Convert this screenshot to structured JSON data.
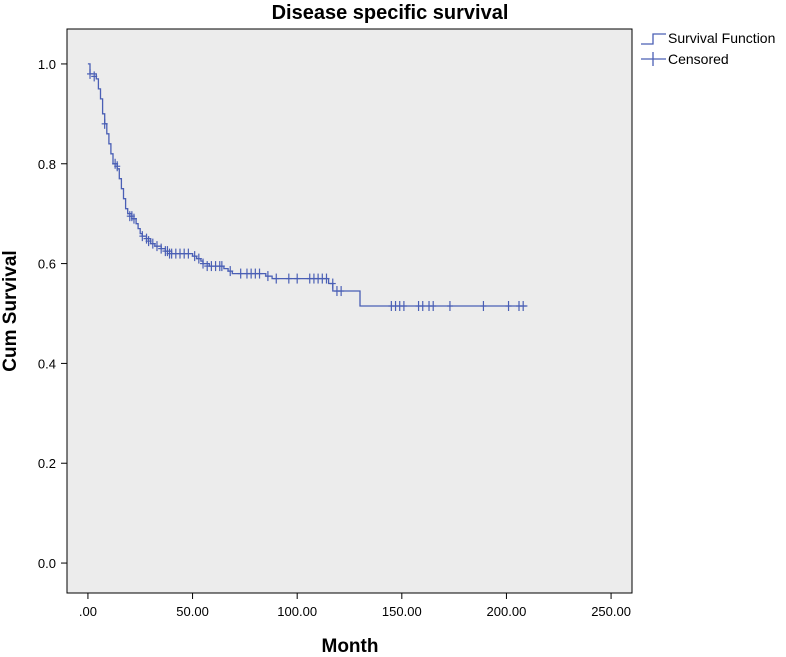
{
  "chart_data": {
    "type": "line",
    "title": "Disease specific survival",
    "xlabel": "Month",
    "ylabel": "Cum Survival",
    "xlim": [
      -10,
      260
    ],
    "ylim": [
      -0.06,
      1.07
    ],
    "x_ticks": [
      0,
      50,
      100,
      150,
      200,
      250
    ],
    "x_tick_labels": [
      ".00",
      "50.00",
      "100.00",
      "150.00",
      "200.00",
      "250.00"
    ],
    "y_ticks": [
      0.0,
      0.2,
      0.4,
      0.6,
      0.8,
      1.0
    ],
    "y_tick_labels": [
      "0.0",
      "0.2",
      "0.4",
      "0.6",
      "0.8",
      "1.0"
    ],
    "grid": false,
    "legend_position": "top-right, outside plot",
    "colors": {
      "series": "#4a5fb5",
      "plot_background": "#ececec",
      "axis": "#000000"
    },
    "series": [
      {
        "name": "Survival Function",
        "style": "step",
        "points": [
          [
            0,
            1.0
          ],
          [
            1,
            0.98
          ],
          [
            4,
            0.97
          ],
          [
            5,
            0.95
          ],
          [
            6,
            0.93
          ],
          [
            7,
            0.9
          ],
          [
            8,
            0.88
          ],
          [
            9,
            0.86
          ],
          [
            10,
            0.84
          ],
          [
            11,
            0.82
          ],
          [
            12,
            0.8
          ],
          [
            14,
            0.79
          ],
          [
            15,
            0.77
          ],
          [
            16,
            0.75
          ],
          [
            17,
            0.73
          ],
          [
            18,
            0.71
          ],
          [
            19,
            0.7
          ],
          [
            21,
            0.69
          ],
          [
            23,
            0.68
          ],
          [
            24,
            0.67
          ],
          [
            25,
            0.66
          ],
          [
            26,
            0.655
          ],
          [
            28,
            0.65
          ],
          [
            30,
            0.64
          ],
          [
            32,
            0.635
          ],
          [
            35,
            0.63
          ],
          [
            37,
            0.625
          ],
          [
            40,
            0.62
          ],
          [
            50,
            0.615
          ],
          [
            52,
            0.61
          ],
          [
            54,
            0.605
          ],
          [
            55,
            0.6
          ],
          [
            58,
            0.595
          ],
          [
            65,
            0.59
          ],
          [
            67,
            0.585
          ],
          [
            69,
            0.58
          ],
          [
            85,
            0.575
          ],
          [
            88,
            0.57
          ],
          [
            115,
            0.56
          ],
          [
            117,
            0.545
          ],
          [
            130,
            0.515
          ],
          [
            210,
            0.515
          ]
        ]
      },
      {
        "name": "Censored",
        "style": "markers",
        "points": [
          [
            1,
            0.98
          ],
          [
            3,
            0.975
          ],
          [
            8,
            0.88
          ],
          [
            13,
            0.8
          ],
          [
            14,
            0.795
          ],
          [
            20,
            0.695
          ],
          [
            21,
            0.695
          ],
          [
            22,
            0.69
          ],
          [
            26,
            0.655
          ],
          [
            28,
            0.65
          ],
          [
            29,
            0.645
          ],
          [
            31,
            0.64
          ],
          [
            33,
            0.635
          ],
          [
            35,
            0.63
          ],
          [
            37,
            0.625
          ],
          [
            38,
            0.625
          ],
          [
            39,
            0.62
          ],
          [
            40,
            0.62
          ],
          [
            42,
            0.62
          ],
          [
            44,
            0.62
          ],
          [
            46,
            0.62
          ],
          [
            48,
            0.62
          ],
          [
            51,
            0.615
          ],
          [
            53,
            0.61
          ],
          [
            55,
            0.6
          ],
          [
            57,
            0.595
          ],
          [
            59,
            0.595
          ],
          [
            61,
            0.595
          ],
          [
            63,
            0.595
          ],
          [
            64,
            0.595
          ],
          [
            68,
            0.585
          ],
          [
            73,
            0.58
          ],
          [
            76,
            0.58
          ],
          [
            78,
            0.58
          ],
          [
            80,
            0.58
          ],
          [
            82,
            0.58
          ],
          [
            86,
            0.575
          ],
          [
            90,
            0.57
          ],
          [
            96,
            0.57
          ],
          [
            100,
            0.57
          ],
          [
            106,
            0.57
          ],
          [
            108,
            0.57
          ],
          [
            110,
            0.57
          ],
          [
            112,
            0.57
          ],
          [
            114,
            0.57
          ],
          [
            117,
            0.56
          ],
          [
            119,
            0.545
          ],
          [
            121,
            0.545
          ],
          [
            145,
            0.515
          ],
          [
            147,
            0.515
          ],
          [
            149,
            0.515
          ],
          [
            151,
            0.515
          ],
          [
            158,
            0.515
          ],
          [
            160,
            0.515
          ],
          [
            163,
            0.515
          ],
          [
            165,
            0.515
          ],
          [
            173,
            0.515
          ],
          [
            189,
            0.515
          ],
          [
            201,
            0.515
          ],
          [
            206,
            0.515
          ],
          [
            208,
            0.515
          ]
        ]
      }
    ]
  }
}
